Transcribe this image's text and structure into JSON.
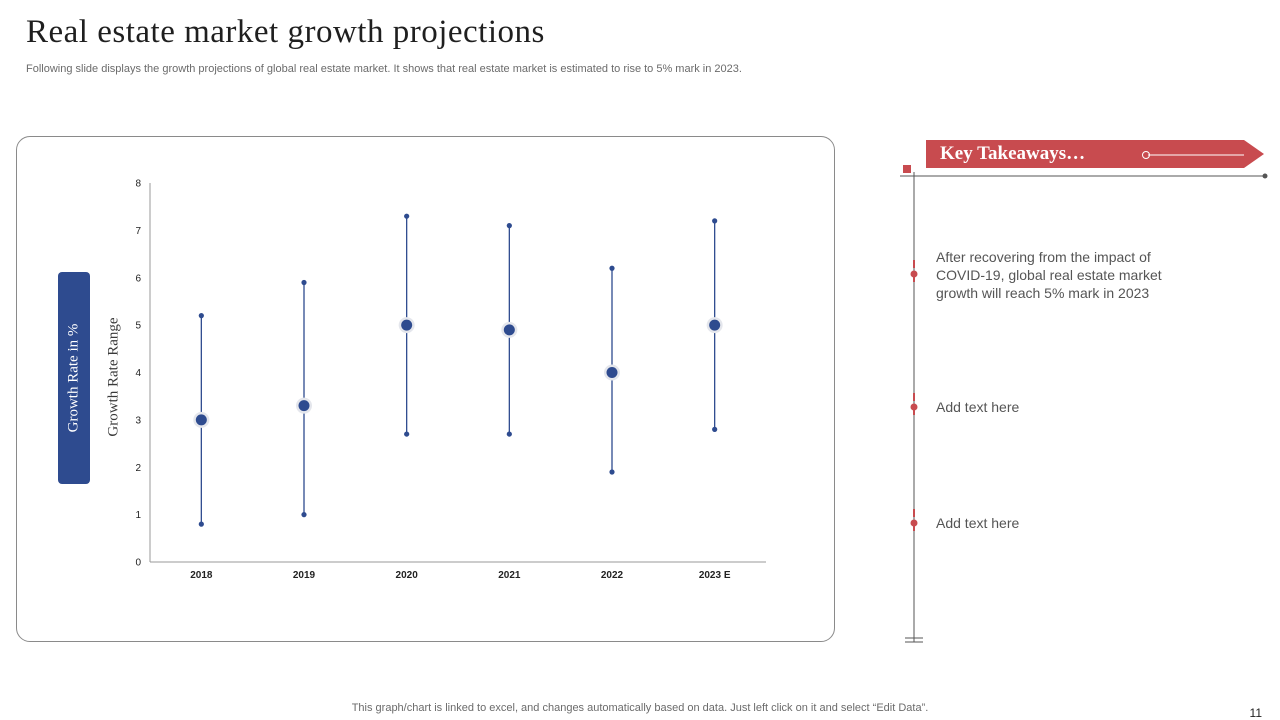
{
  "slide": {
    "title": "Real estate market growth projections",
    "subtitle": "Following slide displays the growth projections of global real estate market. It shows that real estate market is estimated to rise to 5% mark in 2023.",
    "footer_note": "This graph/chart is linked to excel,  and changes automatically based on data. Just left click on it and select “Edit Data”.",
    "page_number": "11"
  },
  "side_labels": {
    "growth_rate": "Growth Rate in %",
    "growth_range": "Growth Rate Range"
  },
  "takeaways": {
    "title": "Key Takeaways…",
    "items": [
      {
        "text": "After recovering from the impact of COVID-19, global real estate market growth will reach 5% mark in 2023"
      },
      {
        "text": "Add text here"
      },
      {
        "text": "Add text here"
      }
    ]
  },
  "colors": {
    "accent_red": "#c84b4f",
    "series_blue": "#2e4b8f",
    "timeline_gray": "#555555"
  },
  "chart_data": {
    "type": "scatter",
    "categories": [
      "2018",
      "2019",
      "2020",
      "2021",
      "2022",
      "2023 E"
    ],
    "series": [
      {
        "name": "",
        "low": [
          0.8,
          1.0,
          2.7,
          2.7,
          1.9,
          2.8
        ],
        "high": [
          5.2,
          5.9,
          7.3,
          7.1,
          6.2,
          7.2
        ],
        "value": [
          3.0,
          3.3,
          5.0,
          4.9,
          4.0,
          5.0
        ]
      }
    ],
    "yticks": [
      "0",
      "1",
      "2",
      "3",
      "4",
      "5",
      "6",
      "7",
      "8"
    ],
    "ylim": [
      0,
      8
    ],
    "grid": false,
    "legend": "none"
  }
}
